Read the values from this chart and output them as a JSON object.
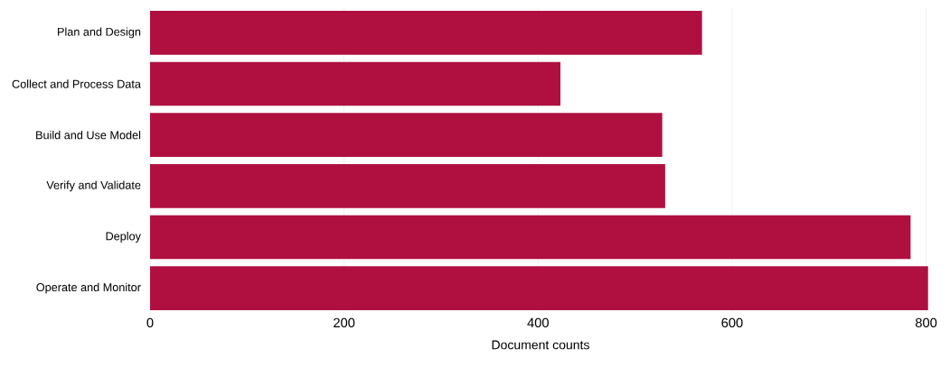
{
  "chart_data": {
    "type": "bar",
    "orientation": "horizontal",
    "xlabel": "Document counts",
    "categories": [
      "Plan and Design",
      "Collect and Process Data",
      "Build and Use Model",
      "Verify and Validate",
      "Deploy",
      "Operate and Monitor"
    ],
    "values": [
      569,
      423,
      528,
      531,
      784,
      802
    ],
    "color": "#b01040",
    "xlim": [
      0,
      805
    ],
    "xticks": [
      0,
      200,
      400,
      600,
      800
    ],
    "grid": "x"
  }
}
